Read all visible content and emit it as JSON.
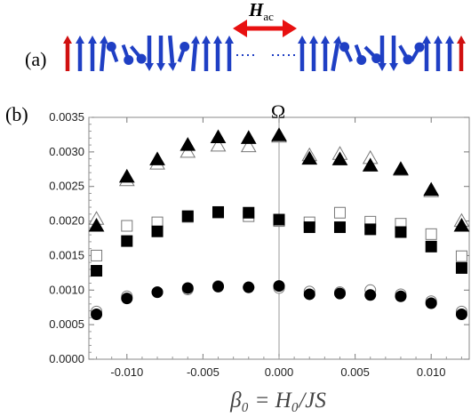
{
  "panel_a": {
    "label": "(a)",
    "field_label_main": "H",
    "field_label_sub": "ac",
    "spin_colors": {
      "edge": "#d01010",
      "bulk": "#1f3fc4"
    },
    "field_color": "#e81010"
  },
  "chart_data": {
    "type": "scatter",
    "panel_label": "(b)",
    "title": "Ω",
    "xlabel": "β₀ = H₀/JS",
    "ylabel": "",
    "xlim": [
      -0.0125,
      0.0125
    ],
    "ylim": [
      0.0,
      0.0035
    ],
    "x_ticks": [
      "-0.010",
      "-0.005",
      "0.000",
      "0.005",
      "0.010"
    ],
    "x_tick_values": [
      -0.01,
      -0.005,
      0.0,
      0.005,
      0.01
    ],
    "y_ticks": [
      "0.0000",
      "0.0005",
      "0.0010",
      "0.0015",
      "0.0020",
      "0.0025",
      "0.0030",
      "0.0035"
    ],
    "y_tick_values": [
      0.0,
      0.0005,
      0.001,
      0.0015,
      0.002,
      0.0025,
      0.003,
      0.0035
    ],
    "grid": false,
    "vertical_reference_line_at": 0.0,
    "x": [
      -0.012,
      -0.01,
      -0.008,
      -0.006,
      -0.004,
      -0.002,
      0.0,
      0.002,
      0.004,
      0.006,
      0.008,
      0.01,
      0.012
    ],
    "series": [
      {
        "marker": "triangle",
        "filled": true,
        "values": [
          0.00193,
          0.00264,
          0.00289,
          0.0031,
          0.00321,
          0.0032,
          0.00324,
          0.0029,
          0.00289,
          0.0028,
          0.00275,
          0.00245,
          0.00193
        ]
      },
      {
        "marker": "triangle",
        "filled": false,
        "values": [
          0.00203,
          0.00259,
          0.00283,
          0.003,
          0.00309,
          0.00308,
          0.00322,
          0.00295,
          0.00297,
          0.00291,
          0.00274,
          0.00243,
          0.002
        ]
      },
      {
        "marker": "square",
        "filled": true,
        "values": [
          0.00128,
          0.00171,
          0.00185,
          0.00207,
          0.00213,
          0.00212,
          0.00202,
          0.00191,
          0.00191,
          0.00188,
          0.00184,
          0.00163,
          0.00132
        ]
      },
      {
        "marker": "square",
        "filled": false,
        "values": [
          0.0015,
          0.00193,
          0.00198,
          0.00206,
          0.00212,
          0.00207,
          0.002,
          0.00198,
          0.00212,
          0.00199,
          0.00196,
          0.00181,
          0.00149
        ]
      },
      {
        "marker": "circle",
        "filled": true,
        "values": [
          0.00065,
          0.00088,
          0.00097,
          0.00103,
          0.00105,
          0.00104,
          0.00106,
          0.00094,
          0.00095,
          0.00093,
          0.00091,
          0.00081,
          0.00065
        ]
      },
      {
        "marker": "circle",
        "filled": false,
        "values": [
          0.00069,
          0.00091,
          0.00097,
          0.00101,
          0.00106,
          0.00104,
          0.00103,
          0.00098,
          0.00097,
          0.001,
          0.00094,
          0.00084,
          0.00069
        ]
      }
    ]
  }
}
